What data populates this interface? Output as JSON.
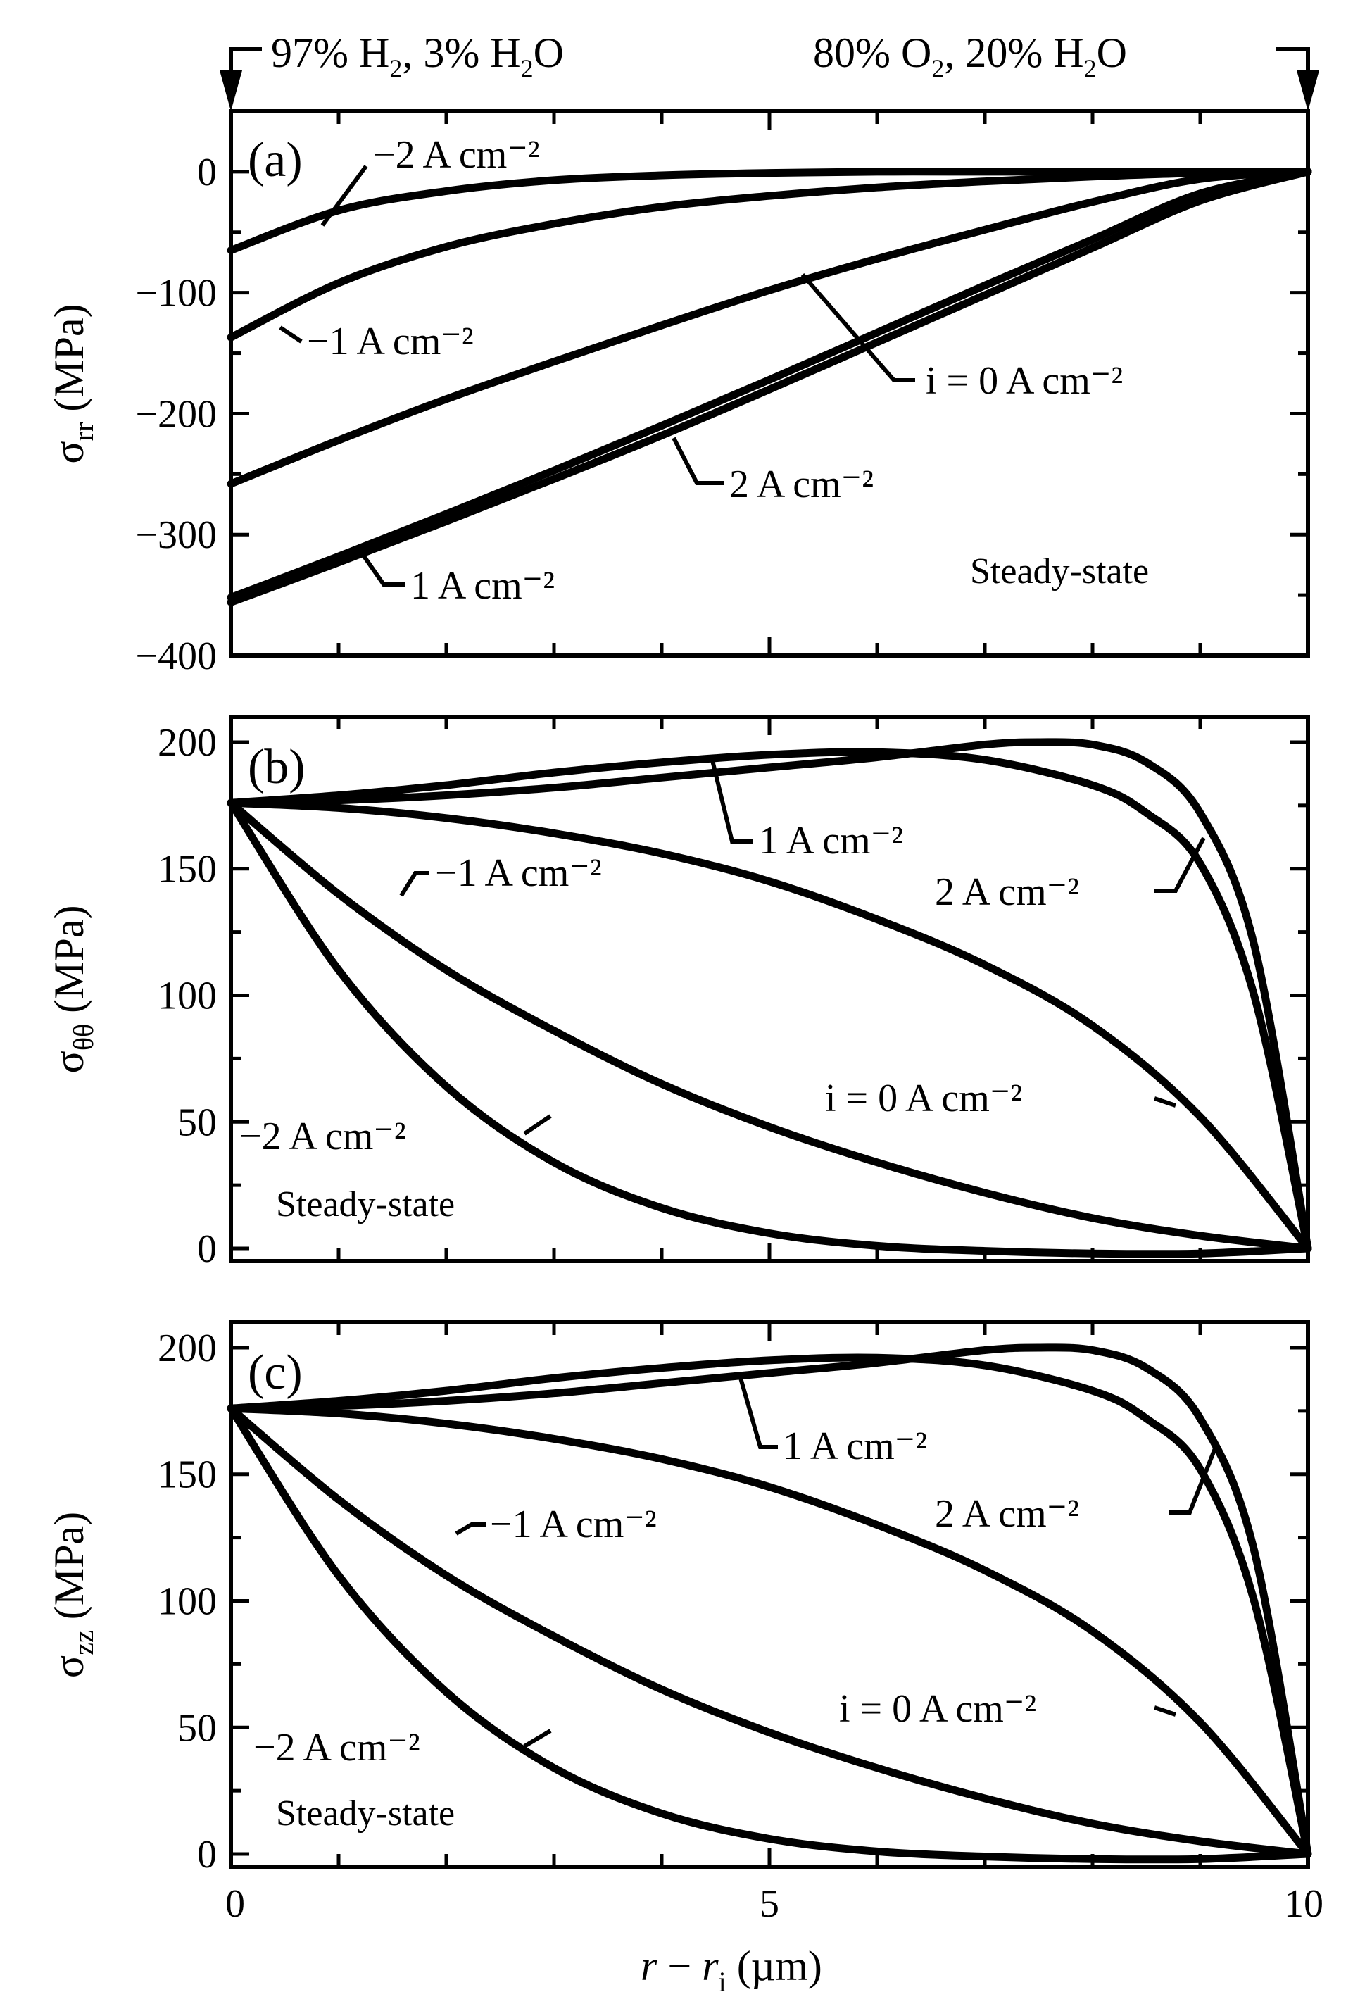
{
  "figure": {
    "header_left_parts": [
      "97% H",
      "2",
      ", 3% H",
      "2",
      "O"
    ],
    "header_right_parts": [
      "80% O",
      "2",
      ", 20% H",
      "2",
      "O"
    ],
    "x_axis_title_parts": [
      "r",
      " − ",
      "r",
      "i",
      " (µm)"
    ],
    "steady_state": "Steady-state",
    "y_title_a_parts": [
      "σ",
      "rr",
      " (MPa)"
    ],
    "y_title_b_parts": [
      "σ",
      "θθ",
      " (MPa)"
    ],
    "y_title_c_parts": [
      "σ",
      "zz",
      " (MPa)"
    ]
  },
  "chart_data": [
    {
      "type": "line",
      "panel": "(a)",
      "xlabel": "r − ri (µm)",
      "ylabel": "σrr (MPa)",
      "xlim": [
        0,
        10
      ],
      "ylim": [
        -400,
        50
      ],
      "x_ticks": [
        "0",
        "5",
        "10"
      ],
      "y_ticks": [
        "0",
        "−100",
        "−200",
        "−300",
        "−400"
      ],
      "y_tick_values": [
        0,
        -100,
        -200,
        -300,
        -400
      ],
      "note": "Steady-state",
      "series": [
        {
          "name": "−2 A cm⁻²",
          "x": [
            0,
            1,
            2,
            3,
            4,
            5,
            6,
            7,
            8,
            9,
            10
          ],
          "y": [
            -65,
            -32,
            -16,
            -7,
            -3,
            -1,
            0,
            0,
            0,
            0,
            0
          ]
        },
        {
          "name": "−1 A cm⁻²",
          "x": [
            0,
            1,
            2,
            3,
            4,
            5,
            6,
            7,
            8,
            9,
            10
          ],
          "y": [
            -137,
            -92,
            -62,
            -43,
            -29,
            -20,
            -13,
            -8,
            -4,
            -1,
            0
          ]
        },
        {
          "name": "i = 0 A cm⁻²",
          "x": [
            0,
            1,
            2,
            3,
            4,
            5,
            6,
            7,
            8,
            9,
            10
          ],
          "y": [
            -258,
            -222,
            -188,
            -157,
            -127,
            -98,
            -72,
            -48,
            -25,
            -6,
            0
          ]
        },
        {
          "name": "2 A cm⁻²",
          "x": [
            0,
            1,
            2,
            3,
            4,
            5,
            6,
            7,
            8,
            9,
            10
          ],
          "y": [
            -352,
            -318,
            -283,
            -247,
            -210,
            -172,
            -133,
            -94,
            -56,
            -18,
            0
          ]
        },
        {
          "name": "1 A cm⁻²",
          "x": [
            0,
            1,
            2,
            3,
            4,
            5,
            6,
            7,
            8,
            9,
            10
          ],
          "y": [
            -356,
            -323,
            -289,
            -254,
            -218,
            -180,
            -141,
            -102,
            -63,
            -24,
            0
          ]
        }
      ],
      "labels": [
        {
          "text": "−2 A cm⁻²",
          "series": "−2 A cm⁻²"
        },
        {
          "text": "−1 A cm⁻²",
          "series": "−1 A cm⁻²"
        },
        {
          "text": "i = 0 A cm⁻²",
          "series": "i = 0 A cm⁻²"
        },
        {
          "text": "2 A cm⁻²",
          "series": "2 A cm⁻²"
        },
        {
          "text": "1 A cm⁻²",
          "series": "1 A cm⁻²"
        }
      ]
    },
    {
      "type": "line",
      "panel": "(b)",
      "xlabel": "r − ri (µm)",
      "ylabel": "σθθ (MPa)",
      "xlim": [
        0,
        10
      ],
      "ylim": [
        -5,
        210
      ],
      "x_ticks": [
        "0",
        "5",
        "10"
      ],
      "y_ticks": [
        "0",
        "50",
        "100",
        "150",
        "200"
      ],
      "y_tick_values": [
        0,
        50,
        100,
        150,
        200
      ],
      "note": "Steady-state",
      "series": [
        {
          "name": "1 A cm⁻²",
          "x": [
            0,
            1,
            2,
            3,
            4,
            5,
            6,
            7,
            8,
            8.5,
            9,
            9.5,
            10
          ],
          "y": [
            176,
            179,
            183,
            188,
            192,
            195,
            196,
            193,
            183,
            172,
            152,
            100,
            0
          ]
        },
        {
          "name": "2 A cm⁻²",
          "x": [
            0,
            1,
            2,
            3,
            4,
            5,
            6,
            7,
            7.5,
            8,
            8.5,
            9,
            9.5,
            10
          ],
          "y": [
            176,
            177,
            179,
            182,
            186,
            190,
            194,
            199,
            200,
            199,
            192,
            172,
            120,
            0
          ]
        },
        {
          "name": "i = 0 A cm⁻²",
          "x": [
            0,
            1,
            2,
            3,
            4,
            5,
            6,
            7,
            8,
            9,
            10
          ],
          "y": [
            176,
            174,
            170,
            164,
            156,
            145,
            130,
            112,
            88,
            52,
            0
          ]
        },
        {
          "name": "−1 A cm⁻²",
          "x": [
            0,
            1,
            2,
            3,
            4,
            5,
            6,
            7,
            8,
            9,
            10
          ],
          "y": [
            176,
            140,
            110,
            86,
            65,
            48,
            34,
            22,
            12,
            5,
            0
          ]
        },
        {
          "name": "−2 A cm⁻²",
          "x": [
            0,
            1,
            2,
            3,
            4,
            5,
            6,
            7,
            8,
            9,
            10
          ],
          "y": [
            176,
            110,
            64,
            34,
            16,
            6,
            1,
            -1,
            -2,
            -2,
            0
          ]
        }
      ],
      "labels": [
        {
          "text": "1 A cm⁻²",
          "series": "1 A cm⁻²"
        },
        {
          "text": "2 A cm⁻²",
          "series": "2 A cm⁻²"
        },
        {
          "text": "−1 A cm⁻²",
          "series": "−1 A cm⁻²"
        },
        {
          "text": "i = 0 A cm⁻²",
          "series": "i = 0 A cm⁻²"
        },
        {
          "text": "−2 A cm⁻²",
          "series": "−2 A cm⁻²"
        }
      ]
    },
    {
      "type": "line",
      "panel": "(c)",
      "xlabel": "r − ri (µm)",
      "ylabel": "σzz (MPa)",
      "xlim": [
        0,
        10
      ],
      "ylim": [
        -5,
        210
      ],
      "x_ticks": [
        "0",
        "5",
        "10"
      ],
      "y_ticks": [
        "0",
        "50",
        "100",
        "150",
        "200"
      ],
      "y_tick_values": [
        0,
        50,
        100,
        150,
        200
      ],
      "note": "Steady-state",
      "series": [
        {
          "name": "1 A cm⁻²",
          "x": [
            0,
            1,
            2,
            3,
            4,
            5,
            6,
            7,
            8,
            8.5,
            9,
            9.5,
            10
          ],
          "y": [
            176,
            179,
            183,
            188,
            192,
            195,
            196,
            193,
            183,
            172,
            152,
            100,
            0
          ]
        },
        {
          "name": "2 A cm⁻²",
          "x": [
            0,
            1,
            2,
            3,
            4,
            5,
            6,
            7,
            7.5,
            8,
            8.5,
            9,
            9.5,
            10
          ],
          "y": [
            176,
            177,
            179,
            182,
            186,
            190,
            194,
            199,
            200,
            199,
            192,
            172,
            120,
            0
          ]
        },
        {
          "name": "i = 0 A cm⁻²",
          "x": [
            0,
            1,
            2,
            3,
            4,
            5,
            6,
            7,
            8,
            9,
            10
          ],
          "y": [
            176,
            174,
            170,
            164,
            156,
            145,
            130,
            112,
            88,
            52,
            0
          ]
        },
        {
          "name": "−1 A cm⁻²",
          "x": [
            0,
            1,
            2,
            3,
            4,
            5,
            6,
            7,
            8,
            9,
            10
          ],
          "y": [
            176,
            140,
            110,
            86,
            65,
            48,
            34,
            22,
            12,
            5,
            0
          ]
        },
        {
          "name": "−2 A cm⁻²",
          "x": [
            0,
            1,
            2,
            3,
            4,
            5,
            6,
            7,
            8,
            9,
            10
          ],
          "y": [
            176,
            110,
            64,
            34,
            16,
            6,
            1,
            -1,
            -2,
            -2,
            0
          ]
        }
      ],
      "labels": [
        {
          "text": "1 A cm⁻²",
          "series": "1 A cm⁻²"
        },
        {
          "text": "2 A cm⁻²",
          "series": "2 A cm⁻²"
        },
        {
          "text": "−1 A cm⁻²",
          "series": "−1 A cm⁻²"
        },
        {
          "text": "i = 0 A cm⁻²",
          "series": "i = 0 A cm⁻²"
        },
        {
          "text": "−2 A cm⁻²",
          "series": "−2 A cm⁻²"
        }
      ]
    }
  ]
}
